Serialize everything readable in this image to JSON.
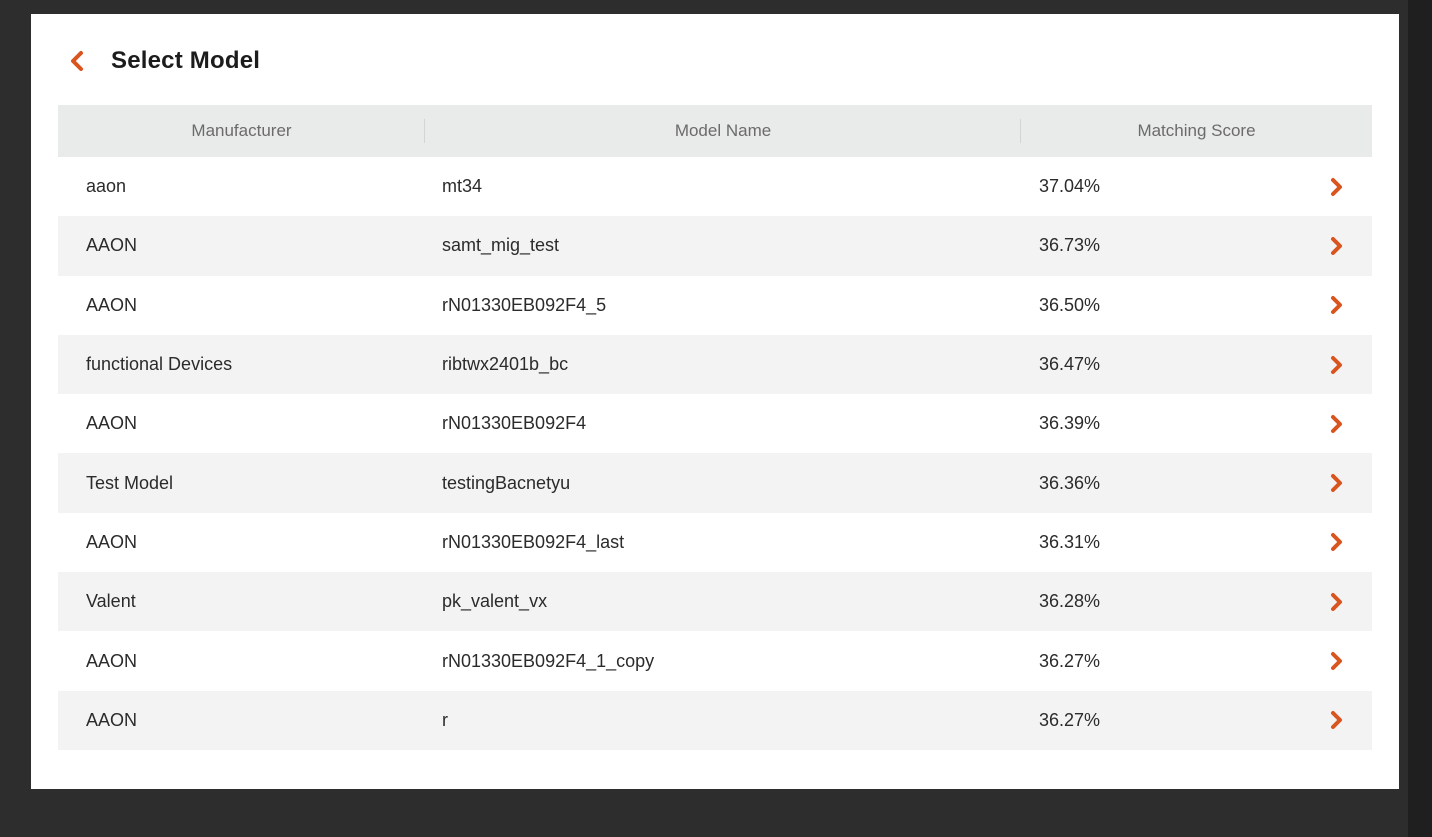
{
  "page": {
    "title": "Select Model",
    "accent_color": "#d9541e"
  },
  "table": {
    "headers": {
      "manufacturer": "Manufacturer",
      "model_name": "Model Name",
      "matching_score": "Matching Score"
    },
    "rows": [
      {
        "manufacturer": "aaon",
        "model_name": "mt34",
        "score": "37.04%"
      },
      {
        "manufacturer": "AAON",
        "model_name": "samt_mig_test",
        "score": "36.73%"
      },
      {
        "manufacturer": "AAON",
        "model_name": "rN01330EB092F4_5",
        "score": "36.50%"
      },
      {
        "manufacturer": "functional Devices",
        "model_name": "ribtwx2401b_bc",
        "score": "36.47%"
      },
      {
        "manufacturer": "AAON",
        "model_name": "rN01330EB092F4",
        "score": "36.39%"
      },
      {
        "manufacturer": "Test Model",
        "model_name": "testingBacnetyu",
        "score": "36.36%"
      },
      {
        "manufacturer": "AAON",
        "model_name": "rN01330EB092F4_last",
        "score": "36.31%"
      },
      {
        "manufacturer": "Valent",
        "model_name": "pk_valent_vx",
        "score": "36.28%"
      },
      {
        "manufacturer": "AAON",
        "model_name": "rN01330EB092F4_1_copy",
        "score": "36.27%"
      },
      {
        "manufacturer": "AAON",
        "model_name": "r",
        "score": "36.27%"
      }
    ]
  },
  "icons": {
    "back": "chevron-left-icon",
    "row_action": "chevron-right-icon"
  }
}
